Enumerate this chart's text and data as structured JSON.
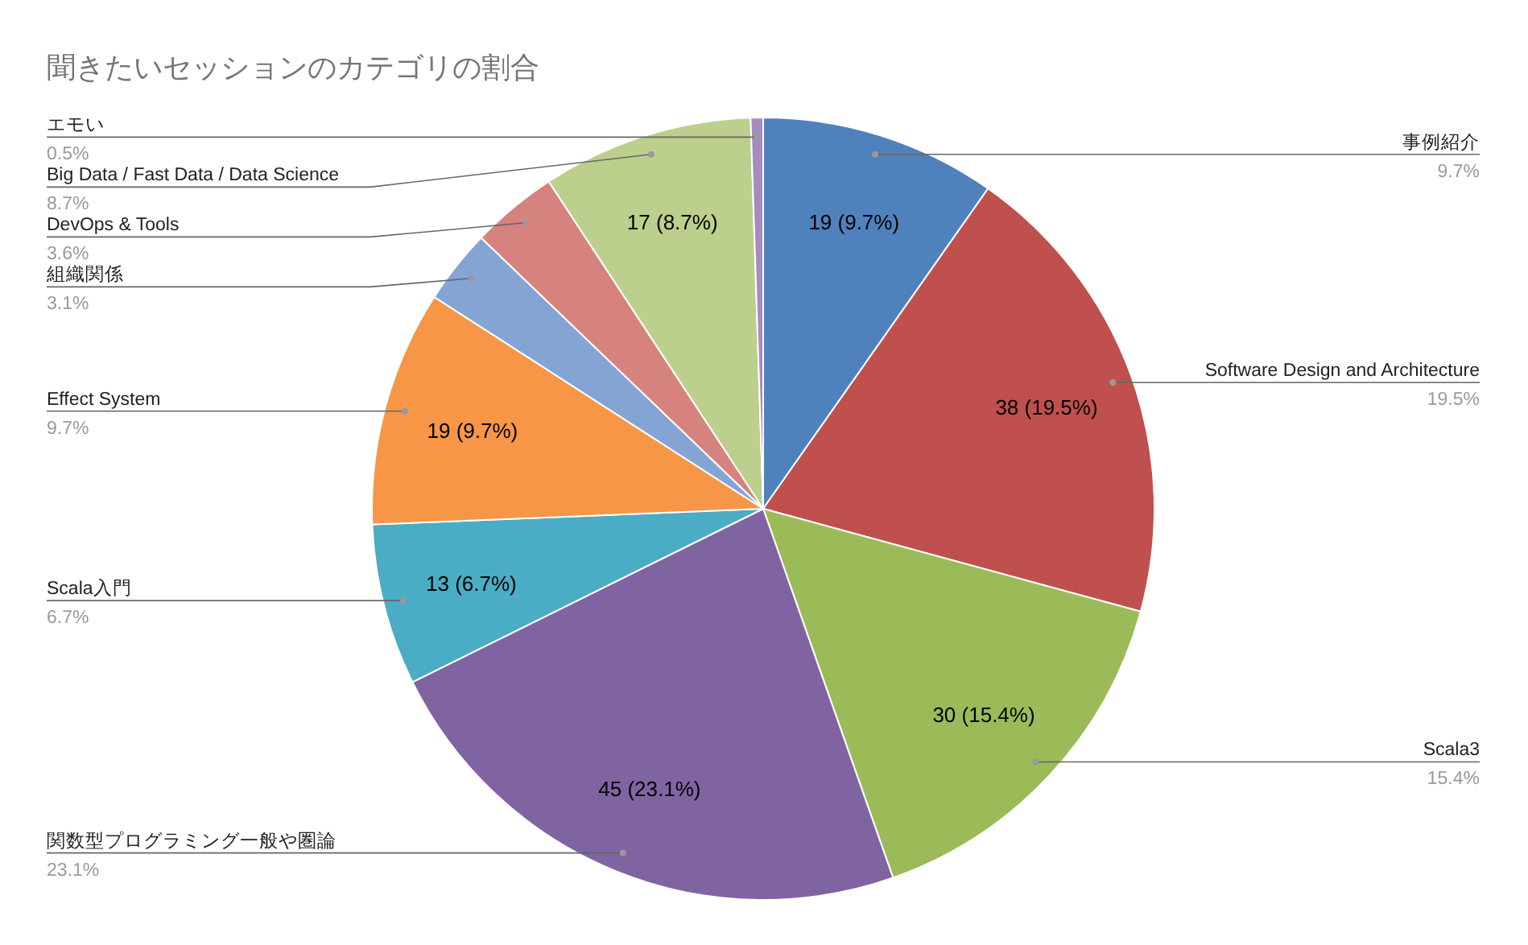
{
  "chart_data": {
    "type": "pie",
    "title": "聞きたいセッションのカテゴリの割合",
    "categories": [
      "事例紹介",
      "Software Design and Architecture",
      "Scala3",
      "関数型プログラミング一般や圏論",
      "Scala入門",
      "Effect System",
      "組織関係",
      "DevOps & Tools",
      "Big Data / Fast Data / Data Science",
      "エモい"
    ],
    "values": [
      19,
      38,
      30,
      45,
      13,
      19,
      6,
      7,
      17,
      1
    ],
    "colors": [
      "#4f81bd",
      "#c0504d",
      "#9bbb59",
      "#8064a2",
      "#4bacc6",
      "#f79646",
      "#84a4d4",
      "#d6837f",
      "#bccf8c",
      "#a68bbf"
    ],
    "value_labels": [
      "19 (9.7%)",
      "38 (19.5%)",
      "30 (15.4%)",
      "45 (23.1%)",
      "13 (6.7%)",
      "19 (9.7%)",
      null,
      null,
      "17 (8.7%)",
      null
    ],
    "annotations": [
      "9.7%",
      "19.5%",
      "15.4%",
      "23.1%",
      "6.7%",
      "9.7%",
      "3.1%",
      "3.6%",
      "8.7%",
      "0.5%"
    ]
  }
}
